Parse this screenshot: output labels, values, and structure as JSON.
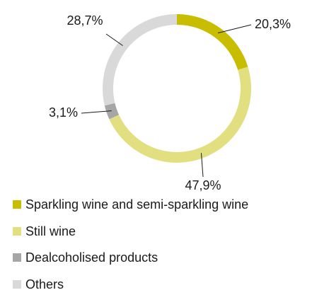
{
  "chart_data": {
    "type": "donut",
    "categories": [
      "Sparkling wine and semi-sparkling wine",
      "Still wine",
      "Dealcoholised products",
      "Others"
    ],
    "values": [
      20.3,
      47.9,
      3.1,
      28.7
    ],
    "value_labels": [
      "20,3%",
      "47,9%",
      "3,1%",
      "28,7%"
    ],
    "colors": [
      "#c8bd00",
      "#e2df80",
      "#a6a6a6",
      "#d9d9d9"
    ]
  }
}
